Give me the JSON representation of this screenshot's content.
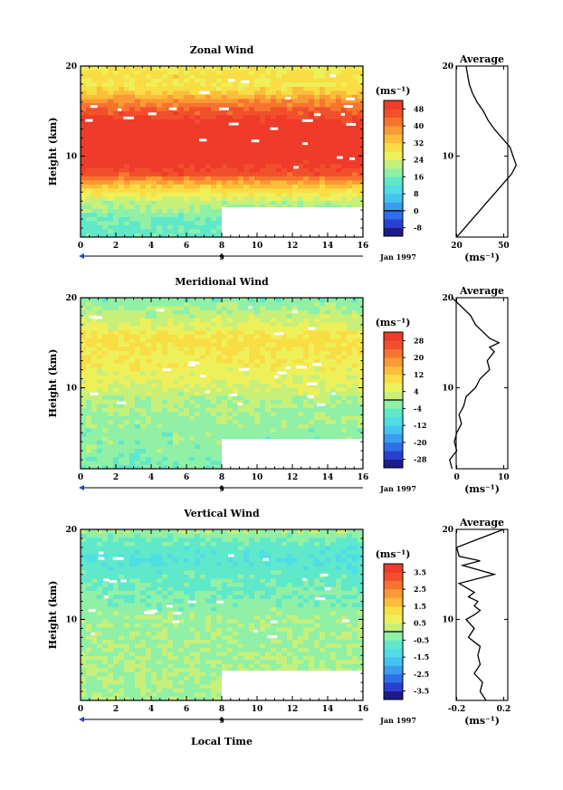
{
  "xlabel": "Local Time",
  "date_label": "Jan 1997",
  "date_tick": "9",
  "panels": [
    {
      "title": "Zonal Wind",
      "ylabel": "Height (km)",
      "units": "(ms⁻¹)",
      "colorbar_ticks": [
        "48",
        "40",
        "32",
        "24",
        "16",
        "8",
        "0",
        "-8"
      ],
      "avg_title": "Average",
      "avg_xticks": [
        "20",
        "50"
      ],
      "avg_units": "(ms⁻¹)"
    },
    {
      "title": "Meridional Wind",
      "ylabel": "Height (km)",
      "units": "(ms⁻¹)",
      "colorbar_ticks": [
        "28",
        "20",
        "12",
        "4",
        "-4",
        "-12",
        "-20",
        "-28"
      ],
      "avg_title": "Average",
      "avg_xticks": [
        "0",
        "10"
      ],
      "avg_units": "(ms⁻¹)"
    },
    {
      "title": "Vertical Wind",
      "ylabel": "Height (km)",
      "units": "(ms⁻¹)",
      "colorbar_ticks": [
        "3.5",
        "2.5",
        "1.5",
        "0.5",
        "-0.5",
        "-1.5",
        "-2.5",
        "-3.5"
      ],
      "avg_title": "Average",
      "avg_xticks": [
        "-0.2",
        "0.2"
      ],
      "avg_units": "(ms⁻¹)"
    }
  ],
  "chart_data": [
    {
      "type": "heatmap",
      "title": "Zonal Wind",
      "xlabel": "",
      "ylabel": "Height (km)",
      "xlim": [
        0,
        16
      ],
      "ylim": [
        1,
        20
      ],
      "xticks": [
        0,
        2,
        4,
        6,
        8,
        10,
        12,
        14,
        16
      ],
      "yticks": [
        10,
        20
      ],
      "colorbar": {
        "units": "(ms⁻¹)",
        "ticks": [
          48,
          40,
          32,
          24,
          16,
          8,
          0,
          -8
        ]
      },
      "no_data_region": {
        "x": [
          8,
          16
        ],
        "y": [
          1,
          4.3
        ]
      },
      "profile_by_height": [
        [
          1,
          14
        ],
        [
          3,
          16
        ],
        [
          5,
          22
        ],
        [
          6,
          28
        ],
        [
          7,
          36
        ],
        [
          8,
          46
        ],
        [
          10,
          52
        ],
        [
          12,
          52
        ],
        [
          14,
          50
        ],
        [
          16,
          40
        ],
        [
          17,
          32
        ],
        [
          18,
          28
        ],
        [
          19,
          30
        ],
        [
          20,
          26
        ]
      ],
      "average": {
        "x": [
          20,
          25,
          30,
          35,
          40,
          45,
          50,
          55,
          58,
          56,
          54,
          49,
          44,
          40,
          37,
          33,
          30,
          28,
          26
        ],
        "height": [
          1,
          2,
          3,
          4,
          5,
          6,
          7,
          8,
          9,
          10,
          11,
          12,
          13,
          14,
          15,
          16,
          17,
          18,
          20
        ],
        "xticks": [
          20,
          50
        ],
        "yticks": [
          10,
          20
        ]
      }
    },
    {
      "type": "heatmap",
      "title": "Meridional Wind",
      "xlabel": "",
      "ylabel": "Height (km)",
      "xlim": [
        0,
        16
      ],
      "ylim": [
        1,
        20
      ],
      "xticks": [
        0,
        2,
        4,
        6,
        8,
        10,
        12,
        14,
        16
      ],
      "yticks": [
        10,
        20
      ],
      "colorbar": {
        "units": "(ms⁻¹)",
        "ticks": [
          28,
          20,
          12,
          4,
          -4,
          -12,
          -20,
          -28
        ]
      },
      "no_data_region": {
        "x": [
          8,
          16
        ],
        "y": [
          1,
          4.3
        ]
      },
      "profile_by_height": [
        [
          1,
          -4
        ],
        [
          3,
          -2
        ],
        [
          5,
          -2
        ],
        [
          7,
          -1
        ],
        [
          9,
          1
        ],
        [
          10,
          4
        ],
        [
          12,
          6
        ],
        [
          14,
          8
        ],
        [
          15,
          10
        ],
        [
          16,
          8
        ],
        [
          17,
          4
        ],
        [
          18,
          2
        ],
        [
          19,
          -1
        ],
        [
          20,
          -3
        ]
      ],
      "average": {
        "x": [
          -1,
          -1.5,
          0,
          -0.5,
          0,
          1,
          0.5,
          1.5,
          2,
          4,
          5,
          7,
          6.5,
          8,
          7,
          9,
          7,
          6,
          4,
          3,
          2,
          1,
          -1
        ],
        "height": [
          1,
          2,
          3,
          4,
          5,
          6,
          7,
          8,
          9,
          10,
          11,
          12,
          13,
          14,
          14.5,
          15,
          15.5,
          16,
          17,
          18,
          18.5,
          19,
          20
        ],
        "xticks": [
          0,
          10
        ],
        "yticks": [
          10,
          20
        ]
      }
    },
    {
      "type": "heatmap",
      "title": "Vertical Wind",
      "xlabel": "Local Time",
      "ylabel": "Height (km)",
      "xlim": [
        0,
        16
      ],
      "ylim": [
        1,
        20
      ],
      "xticks": [
        0,
        2,
        4,
        6,
        8,
        10,
        12,
        14,
        16
      ],
      "yticks": [
        10,
        20
      ],
      "colorbar": {
        "units": "(ms⁻¹)",
        "ticks": [
          3.5,
          2.5,
          1.5,
          0.5,
          -0.5,
          -1.5,
          -2.5,
          -3.5
        ]
      },
      "no_data_region": {
        "x": [
          8,
          16
        ],
        "y": [
          1,
          4.3
        ]
      },
      "profile_by_height": [
        [
          1,
          0
        ],
        [
          5,
          0
        ],
        [
          10,
          -0.1
        ],
        [
          13,
          -0.5
        ],
        [
          15,
          -0.7
        ],
        [
          17,
          -1.0
        ],
        [
          19,
          -0.5
        ],
        [
          20,
          0
        ]
      ],
      "average": {
        "x": [
          0.05,
          0.0,
          0.02,
          -0.05,
          0.0,
          -0.02,
          0.0,
          -0.1,
          -0.05,
          -0.12,
          -0.05,
          0.0,
          -0.05,
          -0.02,
          -0.1,
          -0.05,
          -0.18,
          0.12,
          -0.15,
          0.0,
          -0.18,
          -0.2,
          0.0,
          0.2
        ],
        "height": [
          1,
          2,
          3,
          4,
          5,
          6,
          7,
          8,
          9,
          10,
          10.5,
          11,
          11.5,
          12,
          12.5,
          13,
          14,
          15,
          16,
          16.5,
          17,
          18,
          19,
          20
        ],
        "xticks": [
          -0.2,
          0.2
        ],
        "yticks": [
          10,
          20
        ]
      }
    }
  ]
}
